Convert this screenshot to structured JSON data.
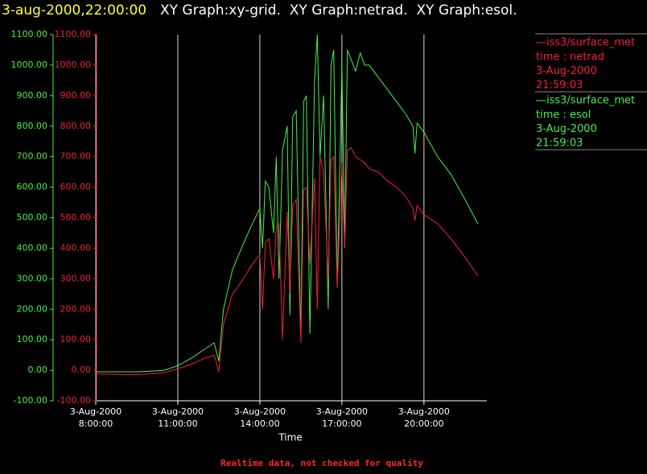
{
  "chart_data": {
    "type": "line",
    "timestamp": "3-aug-2000,22:00:00",
    "title": "XY Graph:xy-grid.  XY Graph:netrad.  XY Graph:esol.",
    "xlabel": "Time",
    "footer": "Realtime data, not checked for quality",
    "x": [
      8,
      8.5,
      9,
      9.5,
      10,
      10.5,
      11,
      11.5,
      12,
      12.33,
      12.5,
      12.67,
      13,
      13.33,
      13.67,
      14,
      14.1,
      14.2,
      14.33,
      14.5,
      14.6,
      14.7,
      14.83,
      15,
      15.1,
      15.2,
      15.33,
      15.5,
      15.6,
      15.7,
      15.83,
      16,
      16.1,
      16.2,
      16.33,
      16.5,
      16.6,
      16.7,
      16.83,
      17,
      17.1,
      17.2,
      17.33,
      17.5,
      17.67,
      17.83,
      18,
      18.33,
      18.67,
      19,
      19.33,
      19.6,
      19.67,
      19.75,
      20,
      20.5,
      21,
      21.5,
      21.97
    ],
    "xlim": [
      8,
      22.3
    ],
    "xticks": [
      {
        "value": 8,
        "label": [
          "3-Aug-2000",
          "8:00:00"
        ]
      },
      {
        "value": 11,
        "label": [
          "3-Aug-2000",
          "11:00:00"
        ]
      },
      {
        "value": 14,
        "label": [
          "3-Aug-2000",
          "14:00:00"
        ]
      },
      {
        "value": 17,
        "label": [
          "3-Aug-2000",
          "17:00:00"
        ]
      },
      {
        "value": 20,
        "label": [
          "3-Aug-2000",
          "20:00:00"
        ]
      }
    ],
    "grid": true,
    "ylim": [
      -100,
      1100
    ],
    "yticks": [
      {
        "value": 1100,
        "label": "1100.00"
      },
      {
        "value": 1000,
        "label": "1000.00"
      },
      {
        "value": 900,
        "label": "900.00"
      },
      {
        "value": 800,
        "label": "800.00"
      },
      {
        "value": 700,
        "label": "700.00"
      },
      {
        "value": 600,
        "label": "600.00"
      },
      {
        "value": 500,
        "label": "500.00"
      },
      {
        "value": 400,
        "label": "400.00"
      },
      {
        "value": 300,
        "label": "300.00"
      },
      {
        "value": 200,
        "label": "200.00"
      },
      {
        "value": 100,
        "label": "100.00"
      },
      {
        "value": 0,
        "label": "0.00"
      },
      {
        "value": -100,
        "label": "-100.00"
      }
    ],
    "y2lim": [
      -100,
      1100
    ],
    "y2ticks": [
      {
        "value": 1100,
        "label": "1100.00"
      },
      {
        "value": 1000,
        "label": "1000.00"
      },
      {
        "value": 900,
        "label": "900.00"
      },
      {
        "value": 800,
        "label": "800.00"
      },
      {
        "value": 700,
        "label": "700.00"
      },
      {
        "value": 600,
        "label": "600.00"
      },
      {
        "value": 500,
        "label": "500.00"
      },
      {
        "value": 400,
        "label": "400.00"
      },
      {
        "value": 300,
        "label": "300.00"
      },
      {
        "value": 200,
        "label": "200.00"
      },
      {
        "value": 100,
        "label": "100.00"
      },
      {
        "value": 0,
        "label": "0.00"
      },
      {
        "value": -100,
        "label": "-100.00"
      }
    ],
    "series": [
      {
        "name": "iss3/surface_met",
        "legend": [
          "time : netrad",
          "3-Aug-2000",
          "21:59:03"
        ],
        "color": "#f0203c",
        "axis": "y2",
        "values": [
          -12,
          -13,
          -14,
          -14,
          -12,
          -8,
          5,
          20,
          40,
          50,
          -5,
          150,
          250,
          290,
          340,
          380,
          200,
          420,
          430,
          300,
          470,
          480,
          100,
          520,
          250,
          540,
          560,
          90,
          590,
          600,
          350,
          630,
          200,
          700,
          650,
          300,
          690,
          700,
          270,
          680,
          400,
          720,
          730,
          700,
          690,
          680,
          660,
          650,
          620,
          600,
          570,
          530,
          490,
          540,
          510,
          480,
          430,
          370,
          310
        ]
      },
      {
        "name": "iss3/surface_met",
        "legend": [
          "time : esol",
          "3-Aug-2000",
          "21:59:03"
        ],
        "color": "#48f048",
        "axis": "y",
        "values": [
          -5,
          -5,
          -5,
          -5,
          -3,
          0,
          15,
          40,
          70,
          90,
          30,
          200,
          330,
          400,
          470,
          530,
          400,
          620,
          600,
          450,
          700,
          300,
          720,
          800,
          180,
          830,
          850,
          100,
          880,
          900,
          120,
          950,
          1100,
          700,
          900,
          200,
          1000,
          1050,
          270,
          1000,
          400,
          1050,
          1020,
          980,
          1040,
          1000,
          1000,
          960,
          920,
          880,
          840,
          800,
          710,
          810,
          780,
          700,
          640,
          560,
          480
        ]
      }
    ]
  }
}
